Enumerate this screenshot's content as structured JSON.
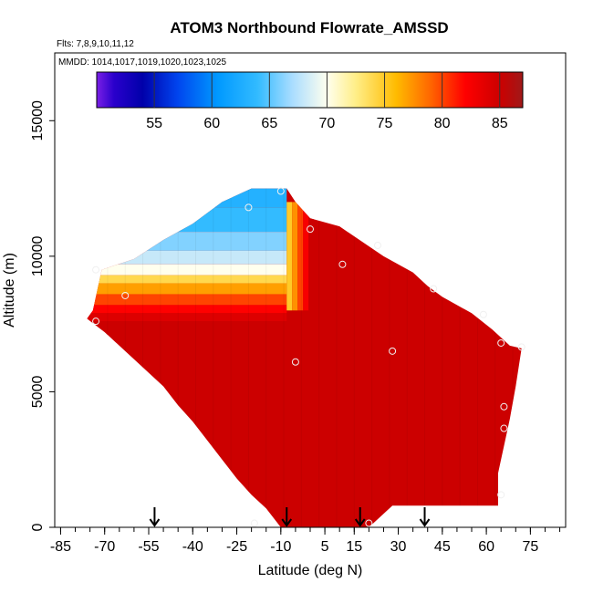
{
  "chart_data": {
    "type": "heatmap",
    "title": "ATOM3 Northbound Flowrate_AMSSD",
    "flights_note": "Flts: 7,8,9,10,11,12",
    "dates_note": "MMDD: 1014,1017,1019,1020,1023,1025",
    "xlabel": "Latitude (deg N)",
    "ylabel": "Altitude (m)",
    "xlim": [
      -87,
      87
    ],
    "ylim": [
      0,
      17500
    ],
    "x_ticks": [
      -85,
      -70,
      -55,
      -40,
      -25,
      -10,
      5,
      15,
      30,
      45,
      60,
      75
    ],
    "x_tick_labels": [
      "-85",
      "-70",
      "-55",
      "-40",
      "-25",
      "-10",
      "5",
      "15",
      "30",
      "45",
      "60",
      "75"
    ],
    "x_minor_step": 5,
    "y_ticks": [
      0,
      5000,
      10000,
      15000
    ],
    "y_tick_labels": [
      "0",
      "5000",
      "10000",
      "15000"
    ],
    "colorbar": {
      "min": 50,
      "max": 87,
      "ticks": [
        55,
        60,
        65,
        70,
        75,
        80,
        85
      ],
      "tick_labels": [
        "55",
        "60",
        "65",
        "70",
        "75",
        "80",
        "85"
      ],
      "stops": [
        {
          "v": 50,
          "c": "#7a1fe6"
        },
        {
          "v": 51.5,
          "c": "#2a00cc"
        },
        {
          "v": 54,
          "c": "#0000aa"
        },
        {
          "v": 57,
          "c": "#0044ee"
        },
        {
          "v": 60.5,
          "c": "#0099ff"
        },
        {
          "v": 64,
          "c": "#33bbff"
        },
        {
          "v": 67,
          "c": "#aaddff"
        },
        {
          "v": 70,
          "c": "#ffffee"
        },
        {
          "v": 72.5,
          "c": "#ffee88"
        },
        {
          "v": 76,
          "c": "#ffbb00"
        },
        {
          "v": 79,
          "c": "#ff6600"
        },
        {
          "v": 82,
          "c": "#ff0000"
        },
        {
          "v": 85,
          "c": "#cc0000"
        },
        {
          "v": 87,
          "c": "#a01818"
        }
      ]
    },
    "arrows_latitude": [
      -53,
      -8,
      17,
      39
    ],
    "flight_points": [
      {
        "lat": -73,
        "alt": 9500
      },
      {
        "lat": -73,
        "alt": 7600
      },
      {
        "lat": -63,
        "alt": 8550
      },
      {
        "lat": -21,
        "alt": 11800
      },
      {
        "lat": -10,
        "alt": 12400
      },
      {
        "lat": 0,
        "alt": 11000
      },
      {
        "lat": -5,
        "alt": 6100
      },
      {
        "lat": 11,
        "alt": 9700
      },
      {
        "lat": 23,
        "alt": 10400
      },
      {
        "lat": 28,
        "alt": 6500
      },
      {
        "lat": 42,
        "alt": 8800
      },
      {
        "lat": 59,
        "alt": 7850
      },
      {
        "lat": 65,
        "alt": 6800
      },
      {
        "lat": 72,
        "alt": 6650
      },
      {
        "lat": 66,
        "alt": 4450
      },
      {
        "lat": 66,
        "alt": 3650
      },
      {
        "lat": 65,
        "alt": 1200
      },
      {
        "lat": -19,
        "alt": 150
      },
      {
        "lat": 20,
        "alt": 150
      }
    ],
    "profile": {
      "mixing_lat": -8,
      "left_top": [
        [
          -74,
          8000
        ],
        [
          -73,
          8500
        ],
        [
          -71,
          9500
        ],
        [
          -60,
          9900
        ],
        [
          -50,
          10600
        ],
        [
          -40,
          11200
        ],
        [
          -30,
          12000
        ],
        [
          -20,
          12500
        ],
        [
          -8,
          12500
        ],
        [
          -5,
          12000
        ],
        [
          0,
          11400
        ],
        [
          10,
          11100
        ],
        [
          25,
          10000
        ],
        [
          35,
          9400
        ],
        [
          40,
          8900
        ],
        [
          45,
          8500
        ],
        [
          55,
          7900
        ],
        [
          62,
          7300
        ],
        [
          68,
          6700
        ],
        [
          72,
          6600
        ],
        [
          70,
          5200
        ],
        [
          68,
          4000
        ],
        [
          66,
          3000
        ],
        [
          64,
          2000
        ],
        [
          64,
          500
        ]
      ],
      "bottom": [
        [
          -76,
          7700
        ],
        [
          -70,
          7200
        ],
        [
          -65,
          6700
        ],
        [
          -60,
          6200
        ],
        [
          -55,
          5700
        ],
        [
          -50,
          5200
        ],
        [
          -45,
          4500
        ],
        [
          -40,
          3900
        ],
        [
          -35,
          3200
        ],
        [
          -30,
          2500
        ],
        [
          -25,
          1800
        ],
        [
          -20,
          1200
        ],
        [
          -15,
          700
        ],
        [
          -10,
          0
        ],
        [
          20,
          0
        ],
        [
          28,
          800
        ],
        [
          64,
          800
        ]
      ],
      "upper_gradient": [
        {
          "alt": 12400,
          "v": 63
        },
        {
          "alt": 11800,
          "v": 64
        },
        {
          "alt": 10900,
          "v": 66
        },
        {
          "alt": 10200,
          "v": 68
        },
        {
          "alt": 9700,
          "v": 70
        },
        {
          "alt": 9300,
          "v": 74
        },
        {
          "alt": 9000,
          "v": 77
        },
        {
          "alt": 8600,
          "v": 80
        },
        {
          "alt": 8200,
          "v": 82
        },
        {
          "alt": 7900,
          "v": 84
        },
        {
          "alt": 7600,
          "v": 85
        }
      ],
      "core_value": 85
    }
  }
}
